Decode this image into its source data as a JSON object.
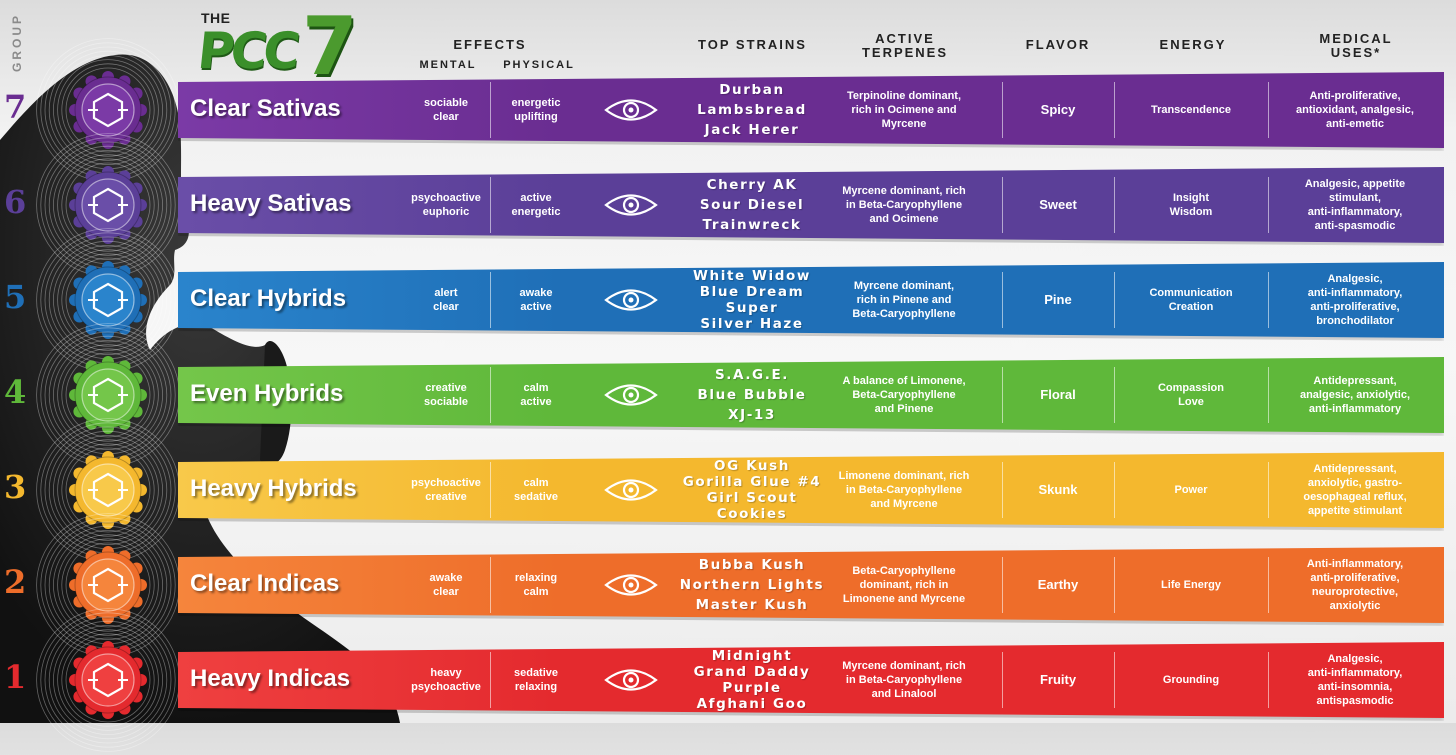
{
  "logo": {
    "the": "THE",
    "pcc": "PCC",
    "seven": "7"
  },
  "group_label": "GROUP",
  "headers": {
    "effects": "EFFECTS",
    "mental": "MENTAL",
    "physical": "PHYSICAL",
    "top_strains": "TOP STRAINS",
    "active_terpenes_1": "ACTIVE",
    "active_terpenes_2": "TERPENES",
    "flavor": "FLAVOR",
    "energy": "ENERGY",
    "medical_1": "MEDICAL",
    "medical_2": "USES*"
  },
  "rows": [
    {
      "num": "7",
      "name": "Clear Sativas",
      "color": "#6a2d91",
      "color2": "#7b3aa6",
      "mental": [
        "sociable",
        "clear"
      ],
      "physical": [
        "energetic",
        "uplifting"
      ],
      "strains": [
        "Durban",
        "Lambsbread",
        "Jack Herer"
      ],
      "terpenes": [
        "Terpinoline dominant,",
        "rich in Ocimene and",
        "Myrcene"
      ],
      "flavor": "Spicy",
      "energy": [
        "Transcendence"
      ],
      "medical": [
        "Anti-proliferative,",
        "antioxidant, analgesic,",
        "anti-emetic"
      ]
    },
    {
      "num": "6",
      "name": "Heavy Sativas",
      "color": "#5b3f98",
      "color2": "#6a4ea8",
      "mental": [
        "psychoactive",
        "euphoric"
      ],
      "physical": [
        "active",
        "energetic"
      ],
      "strains": [
        "Cherry AK",
        "Sour Diesel",
        "Trainwreck"
      ],
      "terpenes": [
        "Myrcene dominant, rich",
        "in Beta-Caryophyllene",
        "and Ocimene"
      ],
      "flavor": "Sweet",
      "energy": [
        "Insight",
        "Wisdom"
      ],
      "medical": [
        "Analgesic, appetite",
        "stimulant,",
        "anti-inflammatory,",
        "anti-spasmodic"
      ]
    },
    {
      "num": "5",
      "name": "Clear Hybrids",
      "color": "#1f6fb7",
      "color2": "#2a84cc",
      "mental": [
        "alert",
        "clear"
      ],
      "physical": [
        "awake",
        "active"
      ],
      "strains": [
        "White Widow",
        "Blue Dream",
        "Super",
        "Silver Haze"
      ],
      "terpenes": [
        "Myrcene dominant,",
        "rich in Pinene and",
        "Beta-Caryophyllene"
      ],
      "flavor": "Pine",
      "energy": [
        "Communication",
        "Creation"
      ],
      "medical": [
        "Analgesic,",
        "anti-inflammatory,",
        "anti-proliferative,",
        "bronchodilator"
      ]
    },
    {
      "num": "4",
      "name": "Even Hybrids",
      "color": "#5fb83a",
      "color2": "#74c64a",
      "mental": [
        "creative",
        "sociable"
      ],
      "physical": [
        "calm",
        "active"
      ],
      "strains": [
        "S.A.G.E.",
        "Blue Bubble",
        "XJ-13"
      ],
      "terpenes": [
        "A balance of Limonene,",
        "Beta-Caryophyllene",
        "and Pinene"
      ],
      "flavor": "Floral",
      "energy": [
        "Compassion",
        "Love"
      ],
      "medical": [
        "Antidepressant,",
        "analgesic, anxiolytic,",
        "anti-inflammatory"
      ]
    },
    {
      "num": "3",
      "name": "Heavy Hybrids",
      "color": "#f4b82e",
      "color2": "#f8c94a",
      "mental": [
        "psychoactive",
        "creative"
      ],
      "physical": [
        "calm",
        "sedative"
      ],
      "strains": [
        "OG Kush",
        "Gorilla Glue #4",
        "Girl Scout",
        "Cookies"
      ],
      "terpenes": [
        "Limonene dominant, rich",
        "in Beta-Caryophyllene",
        "and Myrcene"
      ],
      "flavor": "Skunk",
      "energy": [
        "Power"
      ],
      "medical": [
        "Antidepressant,",
        "anxiolytic, gastro-",
        "oesophageal reflux,",
        "appetite stimulant"
      ]
    },
    {
      "num": "2",
      "name": "Clear Indicas",
      "color": "#ee6d2a",
      "color2": "#f5853c",
      "mental": [
        "awake",
        "clear"
      ],
      "physical": [
        "relaxing",
        "calm"
      ],
      "strains": [
        "Bubba Kush",
        "Northern Lights",
        "Master Kush"
      ],
      "terpenes": [
        "Beta-Caryophyllene",
        "dominant, rich in",
        "Limonene and Myrcene"
      ],
      "flavor": "Earthy",
      "energy": [
        "Life Energy"
      ],
      "medical": [
        "Anti-inflammatory,",
        "anti-proliferative,",
        "neuroprotective,",
        "anxiolytic"
      ]
    },
    {
      "num": "1",
      "name": "Heavy Indicas",
      "color": "#e42a2e",
      "color2": "#ef4040",
      "mental": [
        "heavy",
        "psychoactive"
      ],
      "physical": [
        "sedative",
        "relaxing"
      ],
      "strains": [
        "Midnight",
        "Grand Daddy",
        "Purple",
        "Afghani Goo"
      ],
      "terpenes": [
        "Myrcene dominant, rich",
        "in Beta-Caryophyllene",
        "and Linalool"
      ],
      "flavor": "Fruity",
      "energy": [
        "Grounding"
      ],
      "medical": [
        "Analgesic,",
        "anti-inflammatory,",
        "anti-insomnia,",
        "antispasmodic"
      ]
    }
  ]
}
